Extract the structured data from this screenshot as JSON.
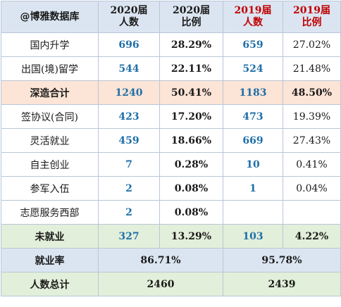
{
  "brand": "@博雅数据库",
  "headers": {
    "y2020_count": [
      "2020届",
      "人数"
    ],
    "y2020_ratio": [
      "2020届",
      "比例"
    ],
    "y2019_count": [
      "2019届",
      "人数"
    ],
    "y2019_ratio": [
      "2019届",
      "比例"
    ]
  },
  "rows": [
    {
      "label": "国内升学",
      "c2020": "696",
      "r2020": "28.29%",
      "c2019": "659",
      "r2019": "27.02%"
    },
    {
      "label": "出国(境)留学",
      "c2020": "544",
      "r2020": "22.11%",
      "c2019": "524",
      "r2019": "21.48%"
    },
    {
      "label": "深造合计",
      "c2020": "1240",
      "r2020": "50.41%",
      "c2019": "1183",
      "r2019": "48.50%"
    },
    {
      "label": "签协议(合同)",
      "c2020": "423",
      "r2020": "17.20%",
      "c2019": "473",
      "r2019": "19.39%"
    },
    {
      "label": "灵活就业",
      "c2020": "459",
      "r2020": "18.66%",
      "c2019": "669",
      "r2019": "27.43%"
    },
    {
      "label": "自主创业",
      "c2020": "7",
      "r2020": "0.28%",
      "c2019": "10",
      "r2019": "0.41%"
    },
    {
      "label": "参军入伍",
      "c2020": "2",
      "r2020": "0.08%",
      "c2019": "1",
      "r2019": "0.04%"
    },
    {
      "label": "志愿服务西部",
      "c2020": "2",
      "r2020": "0.08%",
      "c2019": "",
      "r2019": ""
    },
    {
      "label": "未就业",
      "c2020": "327",
      "r2020": "13.29%",
      "c2019": "103",
      "r2019": "4.22%"
    }
  ],
  "employment_rate": {
    "label": "就业率",
    "v2020": "86.71%",
    "v2019": "95.78%"
  },
  "total": {
    "label": "人数总计",
    "v2020": "2460",
    "v2019": "2439"
  },
  "colors": {
    "header_bg": "#dbe5f1",
    "highlight_pink": "#fce4d6",
    "highlight_green": "#e2efda",
    "number_blue": "#1f6fa8",
    "year2019_red": "#c00000"
  }
}
